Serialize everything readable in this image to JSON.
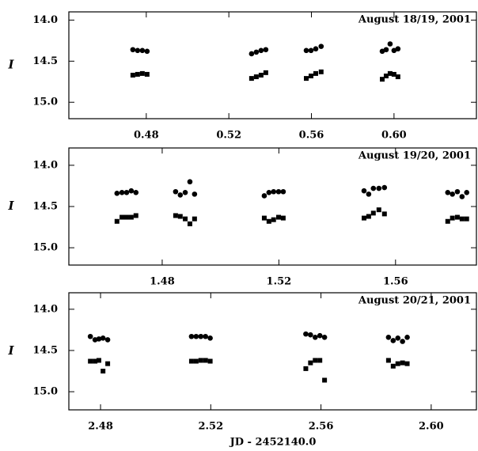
{
  "chart_data": [
    {
      "type": "scatter",
      "annotation": "August 18/19, 2001",
      "y_label": "I",
      "xlim": [
        0.4425,
        0.6403
      ],
      "xticks": [
        0.48,
        0.52,
        0.56,
        {
          "value": 0.6,
          "label": "0.60"
        }
      ],
      "ylim": [
        15.2,
        13.9
      ],
      "yticks": [
        {
          "value": 14.0,
          "label": "14.0"
        },
        14.5,
        {
          "value": 15.0,
          "label": "15.0"
        }
      ],
      "series": [
        {
          "marker": "circle",
          "color": "#000000",
          "x": [
            0.4735,
            0.4758,
            0.4781,
            0.4804,
            0.531,
            0.5333,
            0.5356,
            0.5379,
            0.5575,
            0.5598,
            0.5621,
            0.5647,
            0.5943,
            0.5962,
            0.5981,
            0.6,
            0.6019
          ],
          "y": [
            14.36,
            14.37,
            14.37,
            14.38,
            14.41,
            14.39,
            14.37,
            14.36,
            14.37,
            14.37,
            14.35,
            14.32,
            14.38,
            14.36,
            14.29,
            14.37,
            14.35
          ]
        },
        {
          "marker": "square",
          "color": "#000000",
          "x": [
            0.4735,
            0.4758,
            0.4781,
            0.4804,
            0.531,
            0.5333,
            0.5356,
            0.5379,
            0.5575,
            0.5598,
            0.5621,
            0.5647,
            0.5943,
            0.5962,
            0.5981,
            0.6,
            0.6019
          ],
          "y": [
            14.67,
            14.66,
            14.65,
            14.66,
            14.71,
            14.69,
            14.67,
            14.64,
            14.71,
            14.68,
            14.65,
            14.63,
            14.72,
            14.68,
            14.65,
            14.66,
            14.69
          ]
        }
      ]
    },
    {
      "type": "scatter",
      "annotation": "August 19/20, 2001",
      "y_label": "I",
      "xlim": [
        1.448,
        1.588
      ],
      "xticks": [
        1.48,
        1.52,
        1.56
      ],
      "ylim": [
        15.21,
        13.79
      ],
      "yticks": [
        {
          "value": 14.0,
          "label": "14.0"
        },
        14.5,
        {
          "value": 15.0,
          "label": "15.0"
        }
      ],
      "series": [
        {
          "marker": "circle",
          "color": "#000000",
          "x": [
            1.4645,
            1.4662,
            1.4678,
            1.4694,
            1.471,
            1.4846,
            1.4862,
            1.4879,
            1.4895,
            1.4911,
            1.515,
            1.5166,
            1.5182,
            1.5199,
            1.5215,
            1.5492,
            1.5508,
            1.5524,
            1.5543,
            1.5562,
            1.5779,
            1.5795,
            1.5812,
            1.5828,
            1.5844
          ],
          "y": [
            14.34,
            14.33,
            14.33,
            14.31,
            14.33,
            14.32,
            14.36,
            14.33,
            14.2,
            14.35,
            14.37,
            14.33,
            14.32,
            14.32,
            14.32,
            14.31,
            14.35,
            14.28,
            14.28,
            14.27,
            14.33,
            14.35,
            14.32,
            14.38,
            14.33
          ]
        },
        {
          "marker": "square",
          "color": "#000000",
          "x": [
            1.4645,
            1.4662,
            1.4678,
            1.4694,
            1.471,
            1.4846,
            1.4862,
            1.4879,
            1.4895,
            1.4911,
            1.515,
            1.5166,
            1.5182,
            1.5199,
            1.5215,
            1.5492,
            1.5508,
            1.5524,
            1.5543,
            1.5562,
            1.5779,
            1.5795,
            1.5812,
            1.5828,
            1.5844
          ],
          "y": [
            14.68,
            14.63,
            14.63,
            14.63,
            14.61,
            14.61,
            14.62,
            14.65,
            14.71,
            14.65,
            14.64,
            14.68,
            14.66,
            14.63,
            14.64,
            14.64,
            14.62,
            14.58,
            14.54,
            14.59,
            14.68,
            14.64,
            14.63,
            14.65,
            14.65
          ]
        }
      ]
    },
    {
      "type": "scatter",
      "annotation": "August 20/21, 2001",
      "y_label": "I",
      "x_label": "JD - 2452140.0",
      "xlim": [
        2.4685,
        2.6167
      ],
      "xticks": [
        2.48,
        2.52,
        2.56,
        {
          "value": 2.6,
          "label": "2.60"
        }
      ],
      "ylim": [
        15.22,
        13.8
      ],
      "yticks": [
        {
          "value": 14.0,
          "label": "14.0"
        },
        14.5,
        {
          "value": 15.0,
          "label": "15.0"
        }
      ],
      "series": [
        {
          "marker": "circle",
          "color": "#000000",
          "x": [
            2.4763,
            2.478,
            2.4794,
            2.4809,
            2.4826,
            2.513,
            2.5147,
            2.5164,
            2.5181,
            2.5198,
            2.5545,
            2.5562,
            2.5579,
            2.5596,
            2.5613,
            2.5845,
            2.5862,
            2.5879,
            2.5896,
            2.5913
          ],
          "y": [
            14.33,
            14.37,
            14.36,
            14.35,
            14.37,
            14.33,
            14.33,
            14.33,
            14.33,
            14.35,
            14.3,
            14.31,
            14.34,
            14.32,
            14.34,
            14.34,
            14.38,
            14.35,
            14.39,
            14.34
          ]
        },
        {
          "marker": "square",
          "color": "#000000",
          "x": [
            2.4763,
            2.478,
            2.4794,
            2.4809,
            2.4826,
            2.513,
            2.5147,
            2.5164,
            2.5181,
            2.5198,
            2.5545,
            2.5562,
            2.5579,
            2.5596,
            2.5613,
            2.5845,
            2.5862,
            2.5879,
            2.5896,
            2.5913
          ],
          "y": [
            14.63,
            14.63,
            14.62,
            14.75,
            14.66,
            14.63,
            14.63,
            14.62,
            14.62,
            14.63,
            14.72,
            14.65,
            14.62,
            14.62,
            14.86,
            14.62,
            14.69,
            14.66,
            14.65,
            14.66
          ]
        }
      ]
    }
  ]
}
